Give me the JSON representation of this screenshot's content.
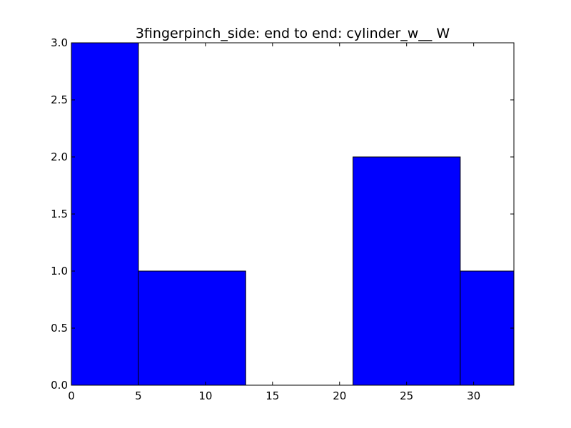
{
  "chart_data": {
    "type": "bar",
    "title": "3fingerpinch_side: end to end: cylinder_w__ W",
    "xlabel": "",
    "ylabel": "",
    "xlim": [
      0,
      33
    ],
    "ylim": [
      0,
      3
    ],
    "bins": [
      {
        "x0": 0,
        "x1": 5,
        "value": 3
      },
      {
        "x0": 5,
        "x1": 13,
        "value": 1
      },
      {
        "x0": 13,
        "x1": 21,
        "value": 0
      },
      {
        "x0": 21,
        "x1": 29,
        "value": 2
      },
      {
        "x0": 29,
        "x1": 37,
        "value": 1
      }
    ],
    "xticks": [
      0,
      5,
      10,
      15,
      20,
      25,
      30
    ],
    "xtick_labels": [
      "0",
      "5",
      "10",
      "15",
      "20",
      "25",
      "30"
    ],
    "yticks": [
      0,
      0.5,
      1,
      1.5,
      2,
      2.5,
      3
    ],
    "ytick_labels": [
      "0.0",
      "0.5",
      "1.0",
      "1.5",
      "2.0",
      "2.5",
      "3.0"
    ],
    "bar_color": "#0000ff",
    "edge_color": "#000000",
    "grid": false
  }
}
